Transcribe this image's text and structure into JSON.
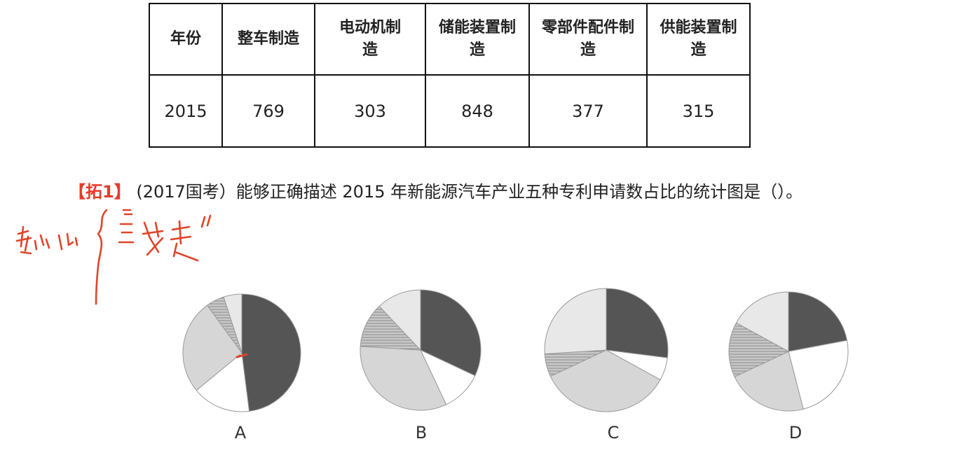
{
  "table": {
    "headers": [
      "年份",
      "整车制造",
      "电动机制造",
      "储能装置制造",
      "零部件配件制造",
      "供能装置制造"
    ],
    "header_lines": [
      [
        "年份"
      ],
      [
        "整车制造"
      ],
      [
        "电动机制",
        "造"
      ],
      [
        "储能装置制",
        "造"
      ],
      [
        "零部件配件制",
        "造"
      ],
      [
        "供能装置制",
        "造"
      ]
    ],
    "row": [
      "2015",
      "769",
      "303",
      "848",
      "377",
      "315"
    ]
  },
  "question": {
    "tag": "【拓1】",
    "text": "(2017国考）能够正确描述 2015 年新能源汽车产业五种专利申请数占比的统计图是（）。"
  },
  "chart_data": [
    {
      "type": "pie",
      "label": "A",
      "values": [
        48,
        16,
        26,
        5,
        5
      ]
    },
    {
      "type": "pie",
      "label": "B",
      "values": [
        32,
        11,
        33,
        12,
        12
      ]
    },
    {
      "type": "pie",
      "label": "C",
      "values": [
        27,
        6,
        35,
        6,
        26
      ]
    },
    {
      "type": "pie",
      "label": "D",
      "values": [
        22,
        24,
        22,
        15,
        17
      ]
    }
  ],
  "colors": {
    "slice_dark": "#555555",
    "slice_white": "#ffffff",
    "slice_light_gray": "#d6d6d6",
    "slice_hatched": "#bdbdbd",
    "slice_very_light": "#e8e8e8",
    "annotation_red": "#e0442a",
    "tag_red": "#e53b2c"
  }
}
